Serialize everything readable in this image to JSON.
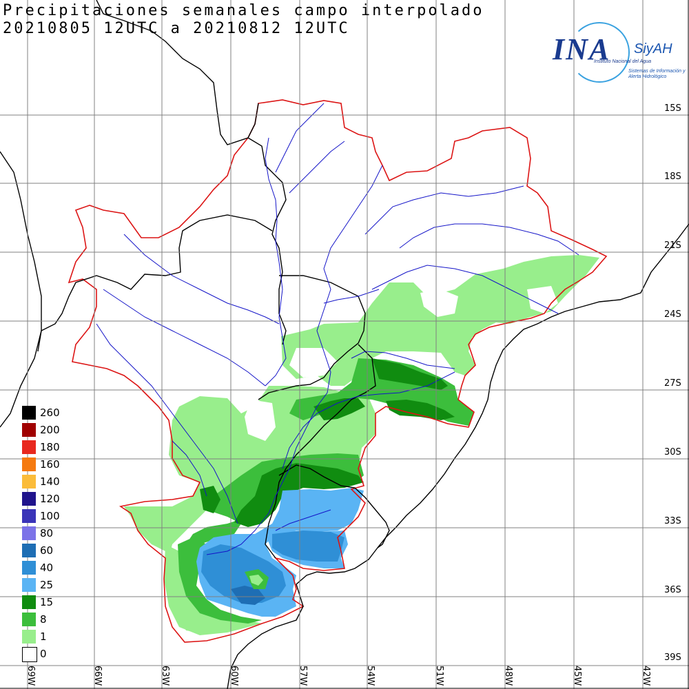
{
  "title": {
    "line1": "Precipitaciones semanales campo interpolado",
    "line2": "20210805 12UTC a 20210812 12UTC"
  },
  "logo": {
    "main": "INA",
    "side": "SiyAH",
    "sub1": "Instituto Nacional del Agua",
    "sub2": "Sistemas de Información y Alerta Hidrológico"
  },
  "lat_labels": [
    "15S",
    "18S",
    "21S",
    "24S",
    "27S",
    "30S",
    "33S",
    "36S",
    "39S"
  ],
  "lon_labels": [
    "69W",
    "66W",
    "63W",
    "60W",
    "57W",
    "54W",
    "51W",
    "48W",
    "45W",
    "42W"
  ],
  "legend": {
    "unit": "",
    "entries": [
      {
        "value": "260",
        "color": "#000000"
      },
      {
        "value": "200",
        "color": "#a00000"
      },
      {
        "value": "180",
        "color": "#e8281e"
      },
      {
        "value": "160",
        "color": "#f57a10"
      },
      {
        "value": "140",
        "color": "#fbbc3a"
      },
      {
        "value": "120",
        "color": "#20148c"
      },
      {
        "value": "100",
        "color": "#3a34b8"
      },
      {
        "value": "80",
        "color": "#7c73e8"
      },
      {
        "value": "60",
        "color": "#1e6eb4"
      },
      {
        "value": "40",
        "color": "#2f8fd6"
      },
      {
        "value": "25",
        "color": "#5ab4f4"
      },
      {
        "value": "15",
        "color": "#108c10"
      },
      {
        "value": "8",
        "color": "#3cbe3c"
      },
      {
        "value": "1",
        "color": "#98ee8c"
      },
      {
        "value": "0",
        "color": "#ffffff"
      }
    ]
  },
  "colors": {
    "basin_outline": "#dc1414",
    "rivers": "#1414c8",
    "borders": "#000000",
    "grid": "#808080"
  }
}
